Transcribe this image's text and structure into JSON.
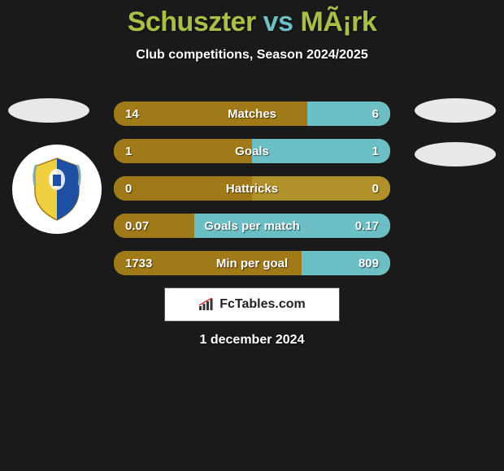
{
  "title": {
    "player1": "Schuszter",
    "vs": "vs",
    "player2": "MÃ¡rk",
    "colors": {
      "player1": "#a8c048",
      "vs": "#6bbfc5",
      "player2": "#a8c048"
    }
  },
  "subtitle": "Club competitions, Season 2024/2025",
  "stats": {
    "bar_bg": "#b09028",
    "fill_left_color": "#a07a18",
    "fill_right_color": "#6bbfc5",
    "text_color": "#ffffff",
    "rows": [
      {
        "label": "Matches",
        "left": "14",
        "right": "6",
        "left_pct": 70,
        "right_pct": 30
      },
      {
        "label": "Goals",
        "left": "1",
        "right": "1",
        "left_pct": 50,
        "right_pct": 50
      },
      {
        "label": "Hattricks",
        "left": "0",
        "right": "0",
        "left_pct": 50,
        "right_pct": 0
      },
      {
        "label": "Goals per match",
        "left": "0.07",
        "right": "0.17",
        "left_pct": 29,
        "right_pct": 71
      },
      {
        "label": "Min per goal",
        "left": "1733",
        "right": "809",
        "left_pct": 68,
        "right_pct": 32
      }
    ]
  },
  "brand": "FcTables.com",
  "date": "1 december 2024",
  "background_color": "#1a1a1a",
  "crest": {
    "bg": "#ffffff",
    "shield_colors": [
      "#1e4fa3",
      "#f0d040"
    ]
  }
}
